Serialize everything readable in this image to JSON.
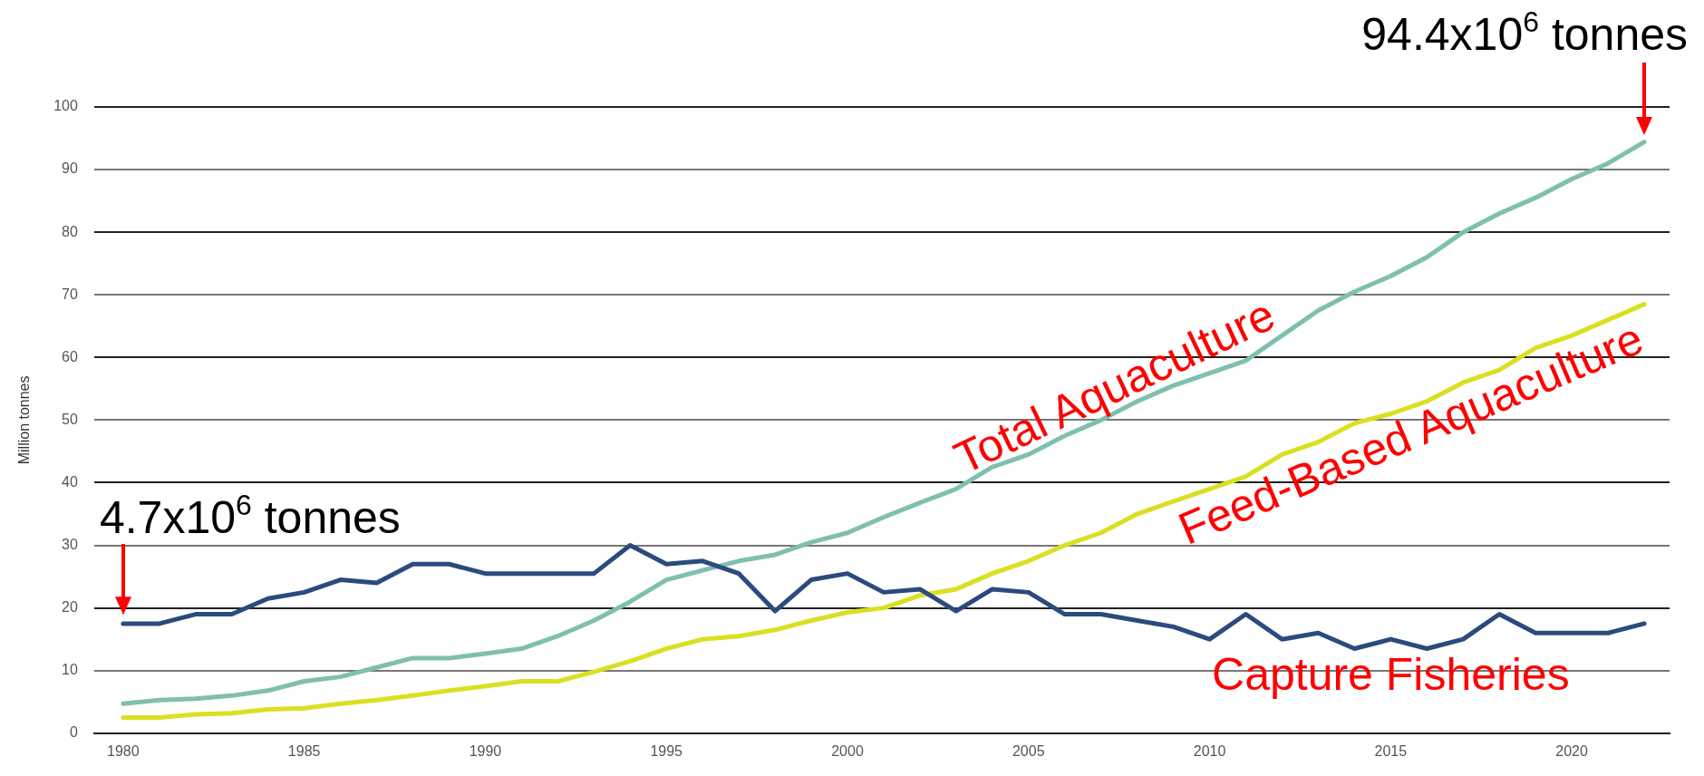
{
  "chart_data": {
    "type": "line",
    "ylabel": "Million tonnes",
    "x": [
      1980,
      1981,
      1982,
      1983,
      1984,
      1985,
      1986,
      1987,
      1988,
      1989,
      1990,
      1991,
      1992,
      1993,
      1994,
      1995,
      1996,
      1997,
      1998,
      1999,
      2000,
      2001,
      2002,
      2003,
      2004,
      2005,
      2006,
      2007,
      2008,
      2009,
      2010,
      2011,
      2012,
      2013,
      2014,
      2015,
      2016,
      2017,
      2018,
      2019,
      2020,
      2021,
      2022
    ],
    "series": [
      {
        "name": "Capture Fisheries",
        "color": "#2b4a7e",
        "values": [
          17.5,
          17.5,
          19,
          19,
          21.5,
          22.5,
          24.5,
          24,
          27,
          27,
          25.5,
          25.5,
          25.5,
          25.5,
          30,
          27,
          27.5,
          25.5,
          19.5,
          24.5,
          25.5,
          22.5,
          23,
          19.5,
          23,
          22.5,
          19,
          19,
          18,
          17,
          15,
          19,
          15,
          16,
          13.5,
          15,
          13.5,
          15,
          19,
          16,
          16,
          16,
          17.5
        ]
      },
      {
        "name": "Total Aquaculture",
        "color": "#7fbfb0",
        "values": [
          4.7,
          5.3,
          5.5,
          6,
          6.8,
          8.3,
          9,
          10.5,
          12,
          12,
          12.7,
          13.5,
          15.5,
          18,
          21,
          24.5,
          26,
          27.5,
          28.5,
          30.5,
          32,
          34.5,
          36.8,
          39,
          42.5,
          44.5,
          47.5,
          50,
          53,
          55.5,
          57.5,
          59.5,
          63.5,
          67.5,
          70.5,
          73,
          76,
          80,
          83,
          85.5,
          88.5,
          91,
          94.4
        ]
      },
      {
        "name": "Feed-Based Aquaculture",
        "color": "#d9e021",
        "values": [
          2.5,
          2.5,
          3,
          3.2,
          3.8,
          4,
          4.7,
          5.3,
          6,
          6.8,
          7.5,
          8.3,
          8.3,
          9.8,
          11.5,
          13.5,
          15,
          15.5,
          16.5,
          18,
          19.3,
          20,
          22,
          23,
          25.5,
          27.5,
          30,
          32,
          35,
          37,
          39,
          41,
          44.5,
          46.5,
          49.5,
          51,
          53,
          56,
          58,
          61.5,
          63.5,
          66,
          68.5
        ]
      }
    ],
    "annotations": [
      "4.7x10$^{6}$ tonnes",
      {
        "text": "94.4x10$^{6}$ tonnes",
        "x": 2022,
        "y": 94.4
      }
    ],
    "xlim": [
      1979.2,
      2022.7
    ],
    "xticks": [
      1980,
      1985,
      1990,
      1995,
      2000,
      2005,
      2010,
      2015,
      2020
    ],
    "ylim": [
      0,
      100
    ],
    "yticks": [
      0,
      10,
      20,
      30,
      40,
      50,
      60,
      70,
      80,
      90,
      100
    ],
    "grid": "y",
    "legend": false,
    "marker": "none",
    "line_style": "solid"
  }
}
